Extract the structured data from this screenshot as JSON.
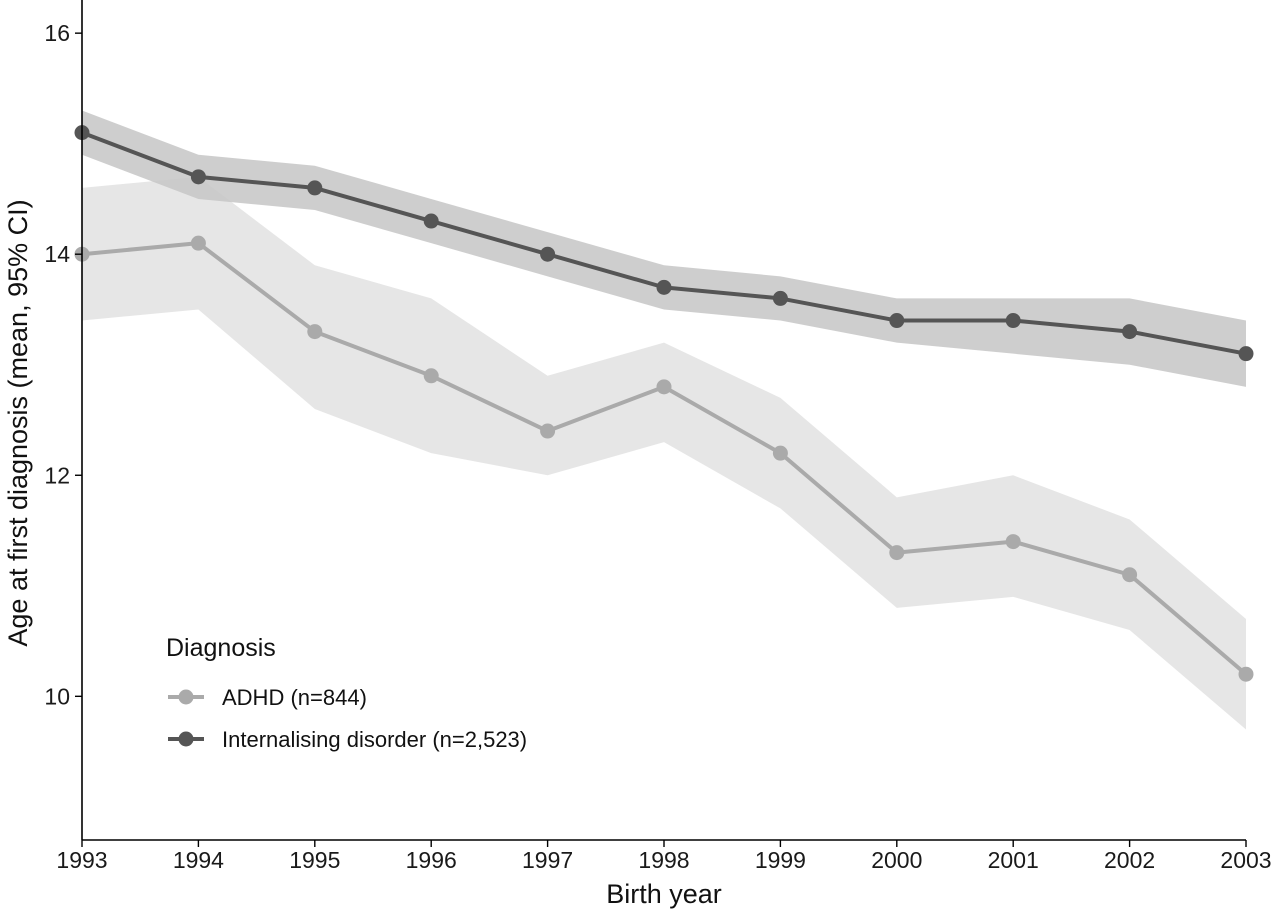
{
  "chart_data": {
    "type": "line",
    "xlabel": "Birth year",
    "ylabel": "Age at first diagnosis (mean, 95% CI)",
    "x": [
      1993,
      1994,
      1995,
      1996,
      1997,
      1998,
      1999,
      2000,
      2001,
      2002,
      2003
    ],
    "xlim": [
      1993,
      2003
    ],
    "ylim": [
      8.7,
      16.3
    ],
    "yticks": [
      10,
      12,
      14,
      16
    ],
    "grid": false,
    "legend": {
      "title": "Diagnosis",
      "placement": "bottom-left"
    },
    "series": [
      {
        "name": "ADHD (n=844)",
        "color": "#aaaaaa",
        "band_color": "#e3e3e3",
        "values": [
          14.0,
          14.1,
          13.3,
          12.9,
          12.4,
          12.8,
          12.2,
          11.3,
          11.4,
          11.1,
          10.2
        ],
        "ci_lower": [
          13.4,
          13.5,
          12.6,
          12.2,
          12.0,
          12.3,
          11.7,
          10.8,
          10.9,
          10.6,
          9.7
        ],
        "ci_upper": [
          14.6,
          14.7,
          13.9,
          13.6,
          12.9,
          13.2,
          12.7,
          11.8,
          12.0,
          11.6,
          10.7
        ]
      },
      {
        "name": "Internalising disorder (n=2,523)",
        "color": "#555555",
        "band_color": "#c6c6c6",
        "values": [
          15.1,
          14.7,
          14.6,
          14.3,
          14.0,
          13.7,
          13.6,
          13.4,
          13.4,
          13.3,
          13.1
        ],
        "ci_lower": [
          14.9,
          14.5,
          14.4,
          14.1,
          13.8,
          13.5,
          13.4,
          13.2,
          13.1,
          13.0,
          12.8
        ],
        "ci_upper": [
          15.3,
          14.9,
          14.8,
          14.5,
          14.2,
          13.9,
          13.8,
          13.6,
          13.6,
          13.6,
          13.4
        ]
      }
    ]
  }
}
